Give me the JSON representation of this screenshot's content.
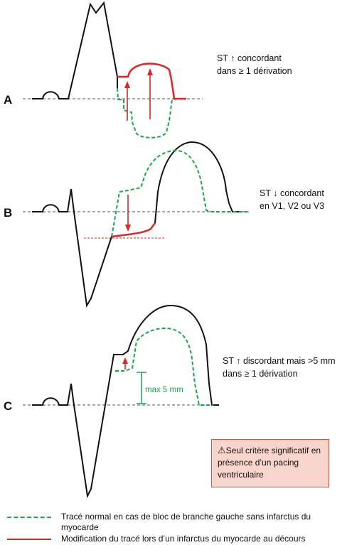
{
  "panels": [
    {
      "letter": "A",
      "note_lines": [
        "ST ↑ concordant",
        "dans ≥ 1 dérivation"
      ]
    },
    {
      "letter": "B",
      "note_lines": [
        "ST ↓ concordant",
        "en V1, V2 ou V3"
      ]
    },
    {
      "letter": "C",
      "note_lines": [
        "ST ↑ discordant mais >5 mm",
        "dans ≥ 1 dérivation"
      ],
      "max_label": "max 5 mm"
    }
  ],
  "callout": {
    "icon": "warning-icon",
    "text": "Seul critère significatif en présence d’un pacing ventriculaire"
  },
  "legend": [
    {
      "style": "green-dashed",
      "text": "Tracé normal en cas de bloc de branche gauche sans infarctus du myocarde"
    },
    {
      "style": "red-solid",
      "text": "Modification du tracé lors d’un infarctus du myocarde au décours"
    }
  ],
  "colors": {
    "normal": "#1aa84a",
    "infarct": "#e02424",
    "trace": "#111111",
    "baseline": "#555555",
    "callout_bg": "#f8d5cc"
  }
}
